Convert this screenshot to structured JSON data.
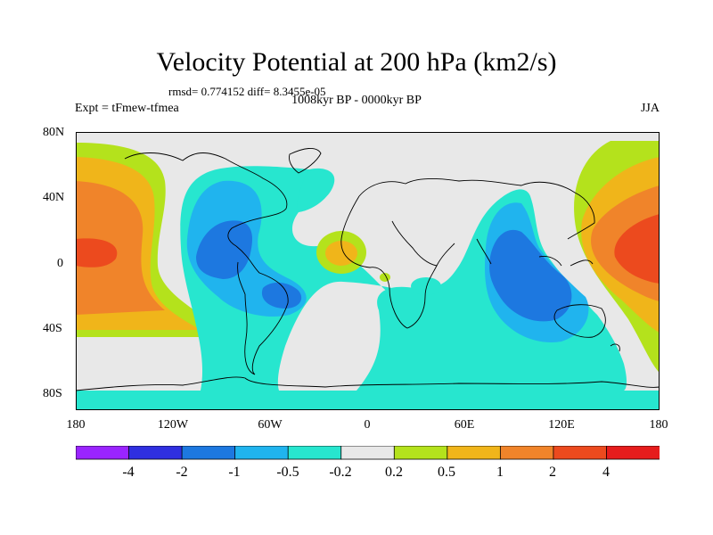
{
  "title": "Velocity Potential at 200 hPa (km2/s)",
  "stats": "rmsd= 0.774152 diff= 8.3455e-05",
  "period": "1008kyr BP - 0000kyr BP",
  "left_string": "Expt = tFmew-tfmea",
  "right_string": "JJA",
  "lat_labels": [
    "80N",
    "40N",
    "0",
    "40S",
    "80S"
  ],
  "lon_labels": [
    "180",
    "120W",
    "60W",
    "0",
    "60E",
    "120E",
    "180"
  ],
  "colorbar": {
    "labels": [
      "-4",
      "-2",
      "-1",
      "-0.5",
      "-0.2",
      "0.2",
      "0.5",
      "1",
      "2",
      "4"
    ],
    "colors": [
      "#9a24ff",
      "#2f2fe0",
      "#1d78e0",
      "#20b4ee",
      "#27e6cf",
      "#e8e8e8",
      "#b4e21c",
      "#f0b51a",
      "#f0842a",
      "#ec4a1e",
      "#e61c1c"
    ]
  }
}
